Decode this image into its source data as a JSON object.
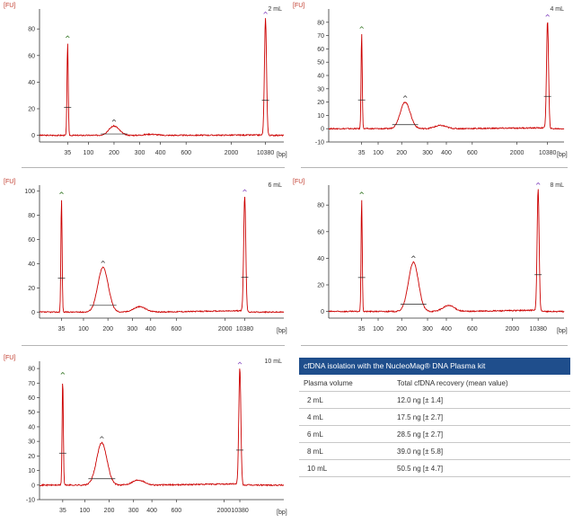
{
  "table": {
    "title": "cfDNA isolation with the NucleoMag® DNA Plasma kit",
    "headers": [
      "Plasma volume",
      "Total cfDNA recovery (mean value)"
    ],
    "rows": [
      [
        "2 mL",
        "12.0 ng [± 1.4]"
      ],
      [
        "4 mL",
        "17.5 ng [± 2.7]"
      ],
      [
        "6 mL",
        "28.5 ng [± 2.7]"
      ],
      [
        "8 mL",
        "39.0 ng [± 5.8]"
      ],
      [
        "10 mL",
        "50.5 ng [± 4.7]"
      ]
    ]
  },
  "chart_data": [
    {
      "type": "line",
      "label": "2 mL",
      "ylabel": "[FU]",
      "xlabel": "[bp]",
      "ylim": [
        -5,
        95
      ],
      "yticks": [
        0,
        20,
        40,
        60,
        80
      ],
      "xticks": [
        "35",
        "100",
        "200",
        "300",
        "400",
        "600",
        "2000",
        "10380"
      ],
      "color": "#cc0000",
      "peaks": [
        {
          "x": "35",
          "height": 70
        },
        {
          "x": "200",
          "height": 7
        },
        {
          "x": "10380",
          "height": 88
        }
      ]
    },
    {
      "type": "line",
      "label": "4 mL",
      "ylabel": "[FU]",
      "xlabel": "[bp]",
      "ylim": [
        -10,
        90
      ],
      "yticks": [
        -10,
        0,
        10,
        20,
        30,
        40,
        50,
        60,
        70,
        80
      ],
      "xticks": [
        "35",
        "100",
        "200",
        "300",
        "400",
        "600",
        "2000",
        "10380"
      ],
      "color": "#cc0000",
      "peaks": [
        {
          "x": "35",
          "height": 72
        },
        {
          "x": "200",
          "height": 20
        },
        {
          "x": "10380",
          "height": 81
        }
      ]
    },
    {
      "type": "line",
      "label": "6 mL",
      "ylabel": "[FU]",
      "xlabel": "[bp]",
      "ylim": [
        -5,
        105
      ],
      "yticks": [
        0,
        20,
        40,
        60,
        80,
        100
      ],
      "xticks": [
        "35",
        "100",
        "200",
        "300",
        "400",
        "600",
        "2000",
        "10380"
      ],
      "color": "#cc0000",
      "peaks": [
        {
          "x": "35",
          "height": 94
        },
        {
          "x": "200",
          "height": 37
        },
        {
          "x": "10380",
          "height": 96
        }
      ]
    },
    {
      "type": "line",
      "label": "8 mL",
      "ylabel": "[FU]",
      "xlabel": "[bp]",
      "ylim": [
        -5,
        95
      ],
      "yticks": [
        0,
        20,
        40,
        60,
        80
      ],
      "xticks": [
        "35",
        "100",
        "200",
        "300",
        "400",
        "600",
        "2000",
        "10380"
      ],
      "color": "#cc0000",
      "peaks": [
        {
          "x": "35",
          "height": 85
        },
        {
          "x": "200",
          "height": 37
        },
        {
          "x": "10380",
          "height": 92
        }
      ]
    },
    {
      "type": "line",
      "label": "10 mL",
      "ylabel": "[FU]",
      "xlabel": "[bp]",
      "ylim": [
        -10,
        85
      ],
      "yticks": [
        -10,
        0,
        10,
        20,
        30,
        40,
        50,
        60,
        70,
        80
      ],
      "xticks": [
        "35",
        "100",
        "200",
        "300",
        "400",
        "600",
        "2000",
        "10380"
      ],
      "color": "#cc0000",
      "peaks": [
        {
          "x": "35",
          "height": 73
        },
        {
          "x": "200",
          "height": 29
        },
        {
          "x": "10380",
          "height": 80
        }
      ]
    }
  ]
}
